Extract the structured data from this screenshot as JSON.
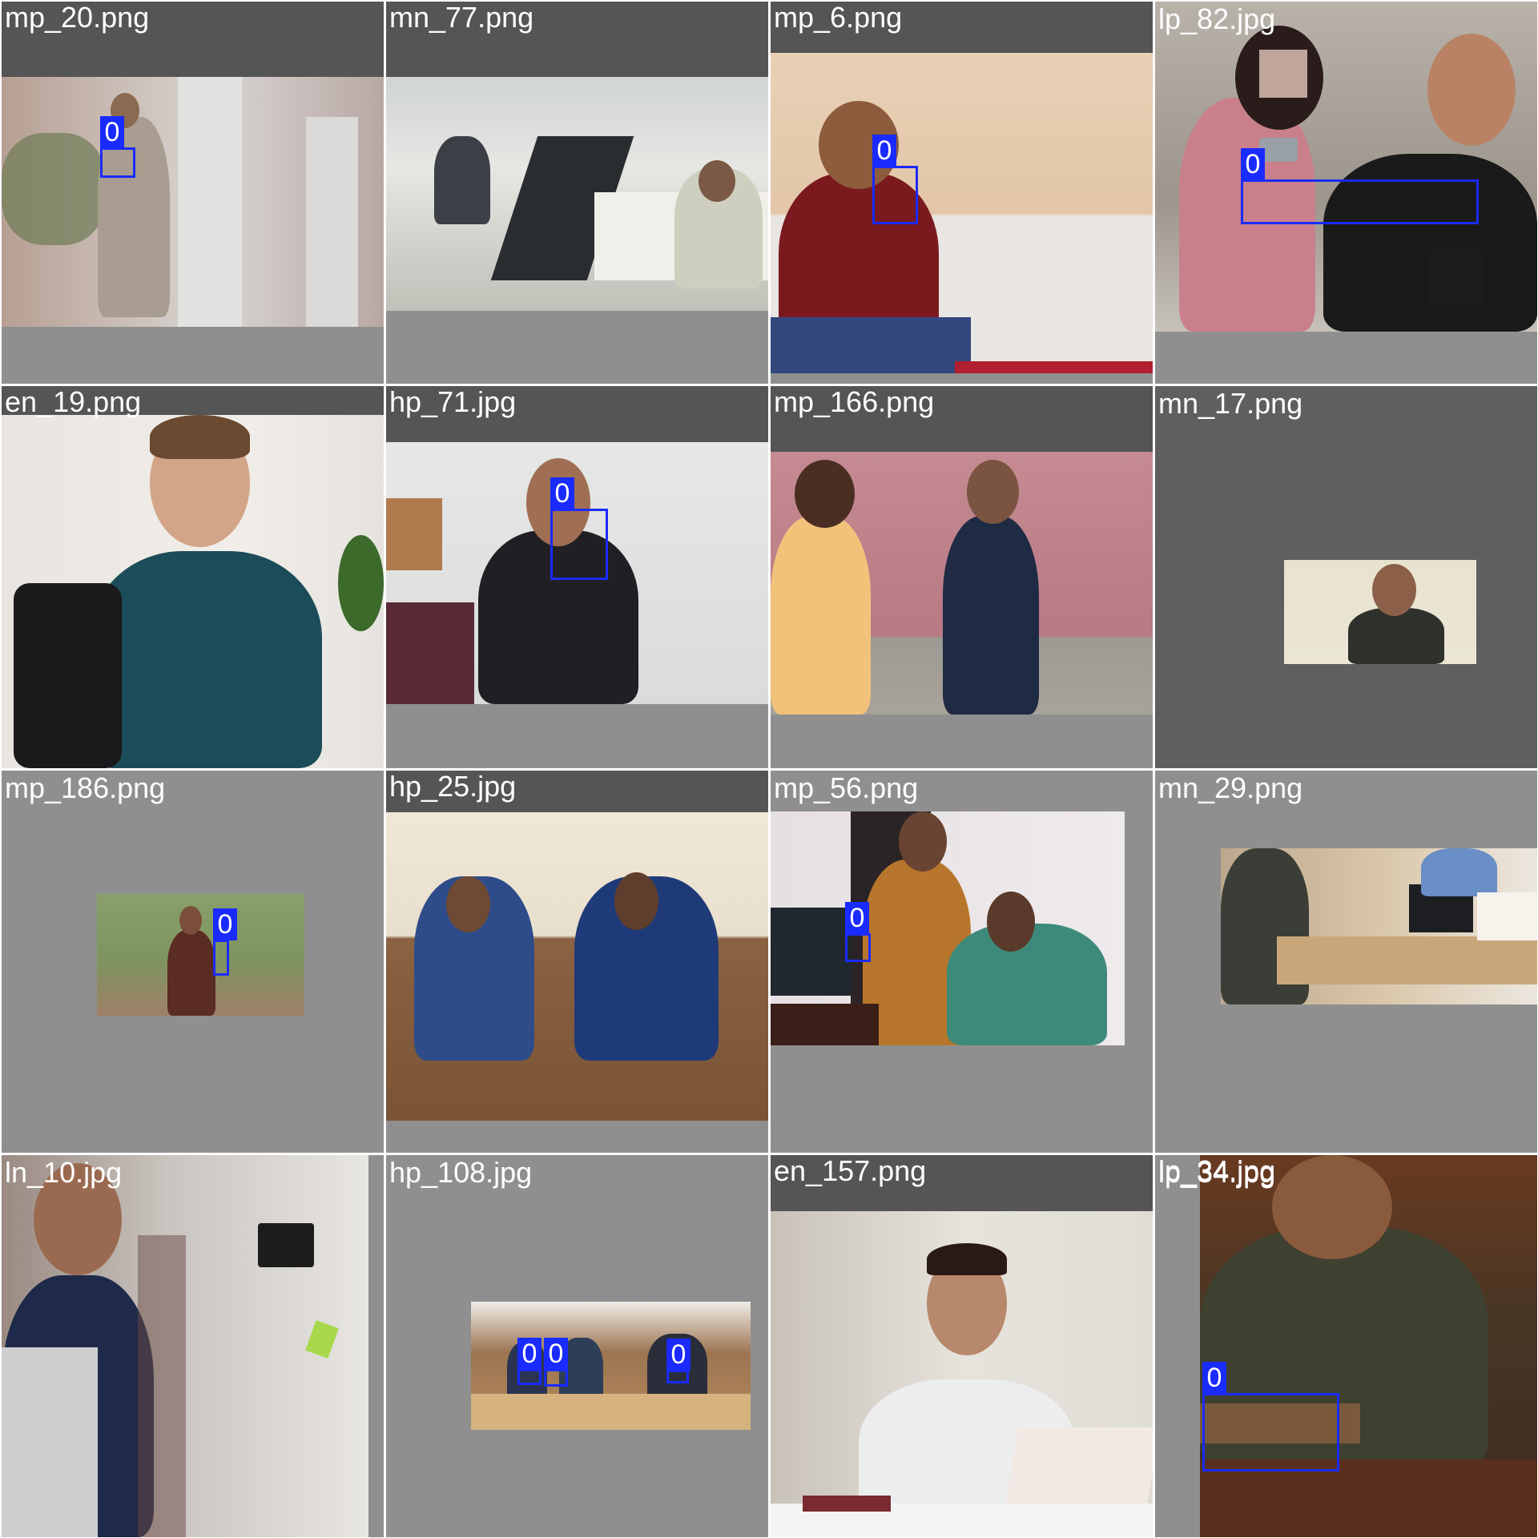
{
  "tiles": [
    {
      "filename": "mp_20.png",
      "detections": [
        {
          "label": "0"
        }
      ]
    },
    {
      "filename": "mn_77.png",
      "detections": []
    },
    {
      "filename": "mp_6.png",
      "detections": [
        {
          "label": "0"
        }
      ]
    },
    {
      "filename": "lp_82.jpg",
      "detections": [
        {
          "label": "0"
        }
      ]
    },
    {
      "filename": "en_19.png",
      "detections": []
    },
    {
      "filename": "hp_71.jpg",
      "detections": [
        {
          "label": "0"
        }
      ]
    },
    {
      "filename": "mp_166.png",
      "detections": []
    },
    {
      "filename": "mn_17.png",
      "detections": []
    },
    {
      "filename": "mp_186.png",
      "detections": [
        {
          "label": "0"
        }
      ]
    },
    {
      "filename": "hp_25.jpg",
      "detections": []
    },
    {
      "filename": "mp_56.png",
      "detections": [
        {
          "label": "0"
        }
      ]
    },
    {
      "filename": "mn_29.png",
      "detections": []
    },
    {
      "filename": "ln_10.jpg",
      "detections": []
    },
    {
      "filename": "hp_108.jpg",
      "detections": [
        {
          "label": "0"
        },
        {
          "label": "0"
        },
        {
          "label": "0"
        }
      ]
    },
    {
      "filename": "en_157.png",
      "detections": []
    },
    {
      "filename": "lp_34.jpg",
      "detections": [
        {
          "label": "0"
        }
      ]
    }
  ],
  "colors": {
    "bbox": "#1a2bff",
    "caption": "#ffffff",
    "padding_gray": "#8f8f8f"
  }
}
